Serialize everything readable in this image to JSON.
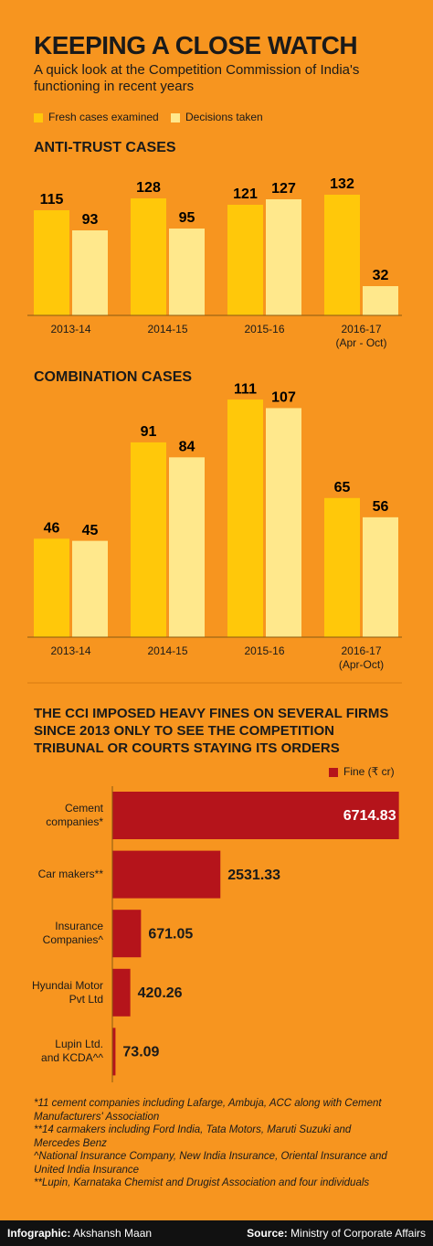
{
  "header": {
    "title": "KEEPING A CLOSE WATCH",
    "subtitle": "A quick look at the Competition Commission of India's functioning in recent years"
  },
  "chart_data": [
    {
      "type": "bar",
      "title": "ANTI-TRUST CASES",
      "categories": [
        "2013-14",
        "2014-15",
        "2015-16",
        "2016-17\n(Apr - Oct)"
      ],
      "series": [
        {
          "name": "Fresh cases examined",
          "color": "#ffc80a",
          "values": [
            115,
            128,
            121,
            132
          ]
        },
        {
          "name": "Decisions taken",
          "color": "#ffe88c",
          "values": [
            93,
            95,
            127,
            32
          ]
        }
      ],
      "ylim": [
        0,
        140
      ],
      "grid": false
    },
    {
      "type": "bar",
      "title": "COMBINATION CASES",
      "categories": [
        "2013-14",
        "2014-15",
        "2015-16",
        "2016-17\n(Apr-Oct)"
      ],
      "series": [
        {
          "color": "#ffc80a",
          "values": [
            46,
            91,
            111,
            65
          ]
        },
        {
          "color": "#ffe88c",
          "values": [
            45,
            84,
            107,
            56
          ]
        }
      ],
      "ylim": [
        0,
        120
      ],
      "grid": false
    },
    {
      "type": "hbar",
      "title": "THE CCI IMPOSED HEAVY FINES ON SEVERAL FIRMS SINCE 2013 ONLY TO SEE THE COMPETITION TRIBUNAL OR COURTS STAYING ITS ORDERS",
      "categories": [
        "Cement\ncompanies*",
        "Car makers**",
        "Insurance\nCompanies^",
        "Hyundai Motor\nPvt Ltd",
        "Lupin Ltd.\nand KCDA^^"
      ],
      "series": [
        {
          "name": "Fine (₹ cr)",
          "color": "#b5141b",
          "values": [
            6714.83,
            2531.33,
            671.05,
            420.26,
            73.09
          ]
        }
      ],
      "xlim": [
        0,
        7000
      ],
      "grid": false
    }
  ],
  "footnotes": [
    "*11 cement companies including Lafarge, Ambuja, ACC along with Cement Manufacturers' Association",
    "**14 carmakers including Ford India, Tata Motors, Maruti Suzuki and Mercedes Benz",
    "^National Insurance Company, New India Insurance, Oriental Insurance and United India Insurance",
    "**Lupin, Karnataka Chemist and Drugist Association and four individuals"
  ],
  "footer": {
    "credit_label": "Infographic:",
    "credit": "Akshansh Maan",
    "source_label": "Source:",
    "source": "Ministry of Corporate Affairs"
  }
}
